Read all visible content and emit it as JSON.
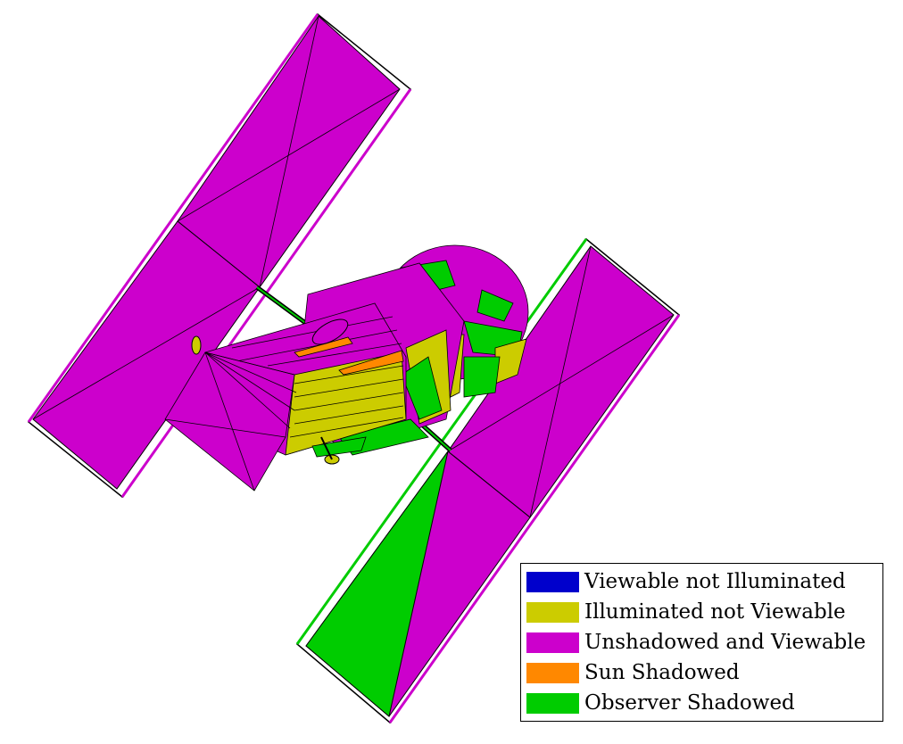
{
  "colors": {
    "viewable_not_illuminated": "#0000cc",
    "illuminated_not_viewable": "#cccc00",
    "unshadowed_and_viewable": "#cc00cc",
    "sun_shadowed": "#ff8800",
    "observer_shadowed": "#00cc00",
    "outline": "#000000",
    "background": "#ffffff"
  },
  "legend": {
    "items": [
      {
        "label": "Viewable not Illuminated",
        "color": "#0000cc"
      },
      {
        "label": "Illuminated not Viewable",
        "color": "#cccc00"
      },
      {
        "label": "Unshadowed and Viewable",
        "color": "#cc00cc"
      },
      {
        "label": "Sun Shadowed",
        "color": "#ff8800"
      },
      {
        "label": "Observer Shadowed",
        "color": "#00cc00"
      }
    ]
  }
}
